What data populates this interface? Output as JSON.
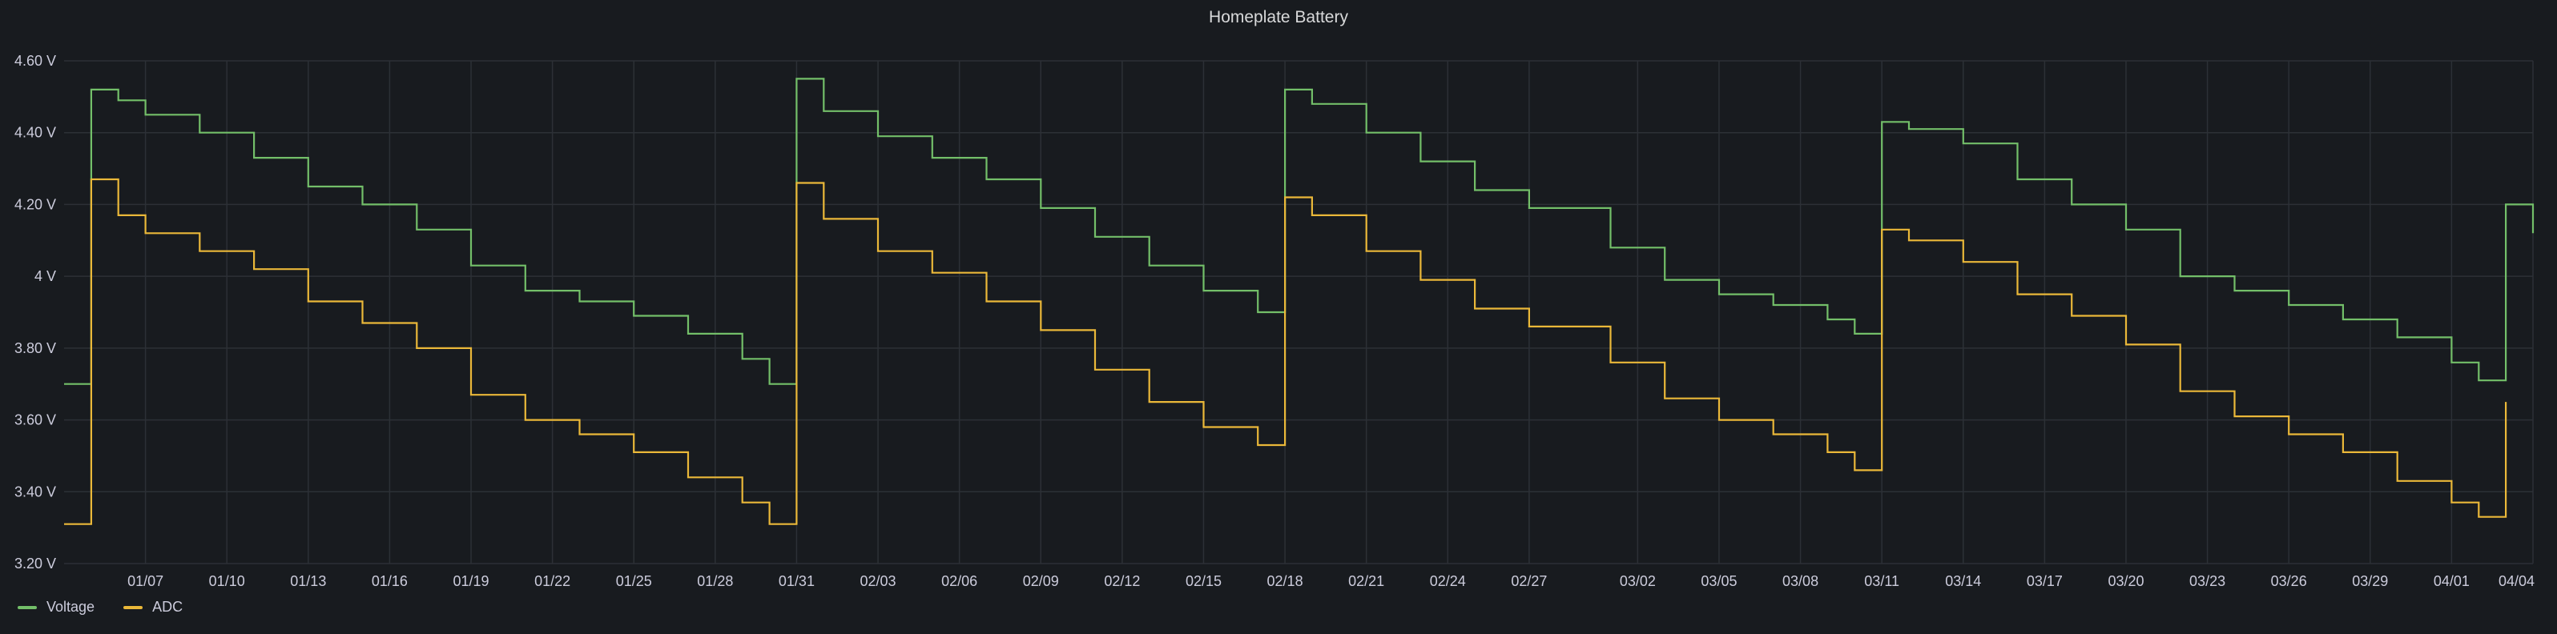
{
  "panel": {
    "title": "Homeplate Battery"
  },
  "colors": {
    "voltage": "#73bf69",
    "adc": "#eab839",
    "grid": "#2c3036",
    "text": "#ccccdc"
  },
  "chart_data": {
    "type": "line",
    "interpolation": "step",
    "title": "Homeplate Battery",
    "ylim": [
      3.2,
      4.6
    ],
    "y_ticks": [
      "4.60 V",
      "4.40 V",
      "4.20 V",
      "4 V",
      "3.80 V",
      "3.60 V",
      "3.40 V",
      "3.20 V"
    ],
    "y_tick_values": [
      4.6,
      4.4,
      4.2,
      4.0,
      3.8,
      3.6,
      3.4,
      3.2
    ],
    "x_range": [
      "01/04",
      "04/04"
    ],
    "x_ticks": [
      "01/07",
      "01/10",
      "01/13",
      "01/16",
      "01/19",
      "01/22",
      "01/25",
      "01/28",
      "01/31",
      "02/03",
      "02/06",
      "02/09",
      "02/12",
      "02/15",
      "02/18",
      "02/21",
      "02/24",
      "02/27",
      "03/02",
      "03/05",
      "03/08",
      "03/11",
      "03/14",
      "03/17",
      "03/20",
      "03/23",
      "03/26",
      "03/29",
      "04/01",
      "04/04"
    ],
    "grid": true,
    "legend_position": "bottom-left",
    "series": [
      {
        "name": "Voltage",
        "color": "#73bf69",
        "points": [
          [
            "01/04",
            3.7
          ],
          [
            "01/05",
            4.52
          ],
          [
            "01/06",
            4.49
          ],
          [
            "01/07",
            4.45
          ],
          [
            "01/09",
            4.4
          ],
          [
            "01/11",
            4.33
          ],
          [
            "01/13",
            4.25
          ],
          [
            "01/15",
            4.2
          ],
          [
            "01/17",
            4.13
          ],
          [
            "01/19",
            4.03
          ],
          [
            "01/21",
            3.96
          ],
          [
            "01/23",
            3.93
          ],
          [
            "01/25",
            3.89
          ],
          [
            "01/27",
            3.84
          ],
          [
            "01/29",
            3.77
          ],
          [
            "01/30",
            3.7
          ],
          [
            "01/31",
            4.55
          ],
          [
            "02/01",
            4.46
          ],
          [
            "02/03",
            4.39
          ],
          [
            "02/05",
            4.33
          ],
          [
            "02/07",
            4.27
          ],
          [
            "02/09",
            4.19
          ],
          [
            "02/11",
            4.11
          ],
          [
            "02/13",
            4.03
          ],
          [
            "02/15",
            3.96
          ],
          [
            "02/17",
            3.9
          ],
          [
            "02/18",
            4.52
          ],
          [
            "02/19",
            4.48
          ],
          [
            "02/21",
            4.4
          ],
          [
            "02/23",
            4.32
          ],
          [
            "02/25",
            4.24
          ],
          [
            "02/27",
            4.19
          ],
          [
            "03/01",
            4.08
          ],
          [
            "03/03",
            3.99
          ],
          [
            "03/05",
            3.95
          ],
          [
            "03/07",
            3.92
          ],
          [
            "03/09",
            3.88
          ],
          [
            "03/10",
            3.84
          ],
          [
            "03/11",
            4.43
          ],
          [
            "03/12",
            4.41
          ],
          [
            "03/14",
            4.37
          ],
          [
            "03/16",
            4.27
          ],
          [
            "03/18",
            4.2
          ],
          [
            "03/20",
            4.13
          ],
          [
            "03/22",
            4.0
          ],
          [
            "03/24",
            3.96
          ],
          [
            "03/26",
            3.92
          ],
          [
            "03/28",
            3.88
          ],
          [
            "03/30",
            3.83
          ],
          [
            "04/01",
            3.76
          ],
          [
            "04/02",
            3.71
          ],
          [
            "04/03",
            4.2
          ],
          [
            "04/04",
            4.12
          ]
        ]
      },
      {
        "name": "ADC",
        "color": "#eab839",
        "points": [
          [
            "01/04",
            3.31
          ],
          [
            "01/05",
            4.27
          ],
          [
            "01/06",
            4.17
          ],
          [
            "01/07",
            4.12
          ],
          [
            "01/09",
            4.07
          ],
          [
            "01/11",
            4.02
          ],
          [
            "01/13",
            3.93
          ],
          [
            "01/15",
            3.87
          ],
          [
            "01/17",
            3.8
          ],
          [
            "01/19",
            3.67
          ],
          [
            "01/21",
            3.6
          ],
          [
            "01/23",
            3.56
          ],
          [
            "01/25",
            3.51
          ],
          [
            "01/27",
            3.44
          ],
          [
            "01/29",
            3.37
          ],
          [
            "01/30",
            3.31
          ],
          [
            "01/31",
            4.26
          ],
          [
            "02/01",
            4.16
          ],
          [
            "02/03",
            4.07
          ],
          [
            "02/05",
            4.01
          ],
          [
            "02/07",
            3.93
          ],
          [
            "02/09",
            3.85
          ],
          [
            "02/11",
            3.74
          ],
          [
            "02/13",
            3.65
          ],
          [
            "02/15",
            3.58
          ],
          [
            "02/17",
            3.53
          ],
          [
            "02/18",
            4.22
          ],
          [
            "02/19",
            4.17
          ],
          [
            "02/21",
            4.07
          ],
          [
            "02/23",
            3.99
          ],
          [
            "02/25",
            3.91
          ],
          [
            "02/27",
            3.86
          ],
          [
            "03/01",
            3.76
          ],
          [
            "03/03",
            3.66
          ],
          [
            "03/05",
            3.6
          ],
          [
            "03/07",
            3.56
          ],
          [
            "03/09",
            3.51
          ],
          [
            "03/10",
            3.46
          ],
          [
            "03/11",
            4.13
          ],
          [
            "03/12",
            4.1
          ],
          [
            "03/14",
            4.04
          ],
          [
            "03/16",
            3.95
          ],
          [
            "03/18",
            3.89
          ],
          [
            "03/20",
            3.81
          ],
          [
            "03/22",
            3.68
          ],
          [
            "03/24",
            3.61
          ],
          [
            "03/26",
            3.56
          ],
          [
            "03/28",
            3.51
          ],
          [
            "03/30",
            3.43
          ],
          [
            "04/01",
            3.37
          ],
          [
            "04/02",
            3.33
          ],
          [
            "04/03",
            3.65
          ]
        ]
      }
    ]
  }
}
